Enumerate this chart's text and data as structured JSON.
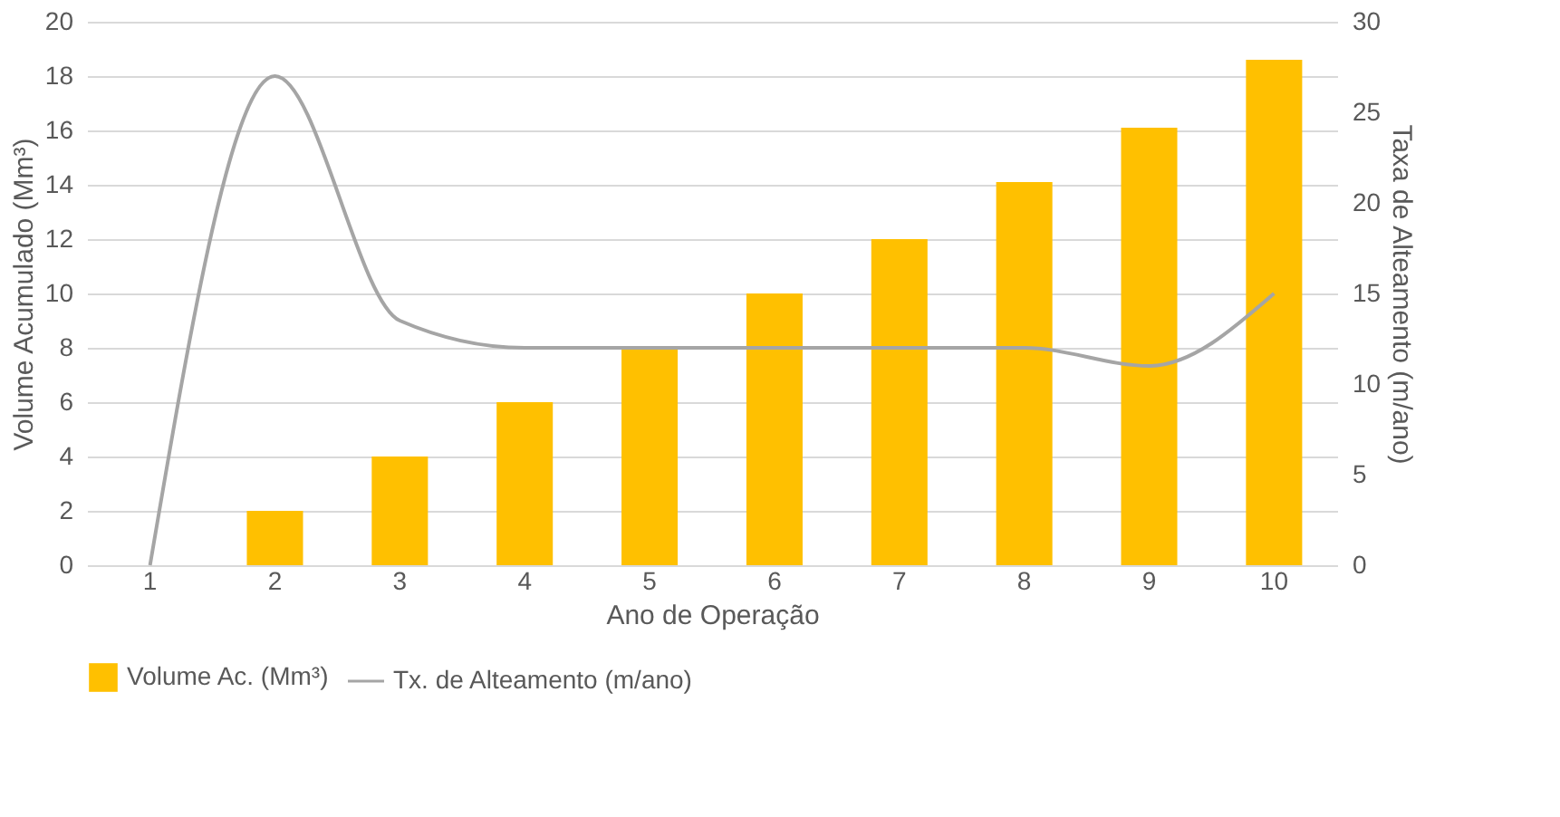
{
  "chart_data": {
    "type": "bar",
    "xlabel": "Ano de Operação",
    "ylabel": "Volume Acumulado  (Mm³)",
    "y2label": "Taxa de Alteamento  (m/ano)",
    "categories": [
      "1",
      "2",
      "3",
      "4",
      "5",
      "6",
      "7",
      "8",
      "9",
      "10"
    ],
    "series": [
      {
        "name": "Volume Ac. (Mm³)",
        "color": "#ffc000",
        "values": [
          0,
          2,
          4,
          6,
          8,
          10,
          12,
          14.1,
          16.1,
          18.6
        ]
      },
      {
        "name": "Tx. de Alteamento (m/ano)",
        "type": "line",
        "axis": "y2",
        "color": "#a5a5a5",
        "values": [
          0,
          27,
          13.5,
          12,
          12,
          12,
          12,
          12,
          11,
          15
        ]
      }
    ],
    "ylim": [
      0,
      20
    ],
    "yticks": [
      0,
      2,
      4,
      6,
      8,
      10,
      12,
      14,
      16,
      18,
      20
    ],
    "y2lim": [
      0,
      30
    ],
    "y2ticks": [
      0,
      5,
      10,
      15,
      20,
      25,
      30
    ],
    "grid": "y",
    "legend": "bottom"
  }
}
